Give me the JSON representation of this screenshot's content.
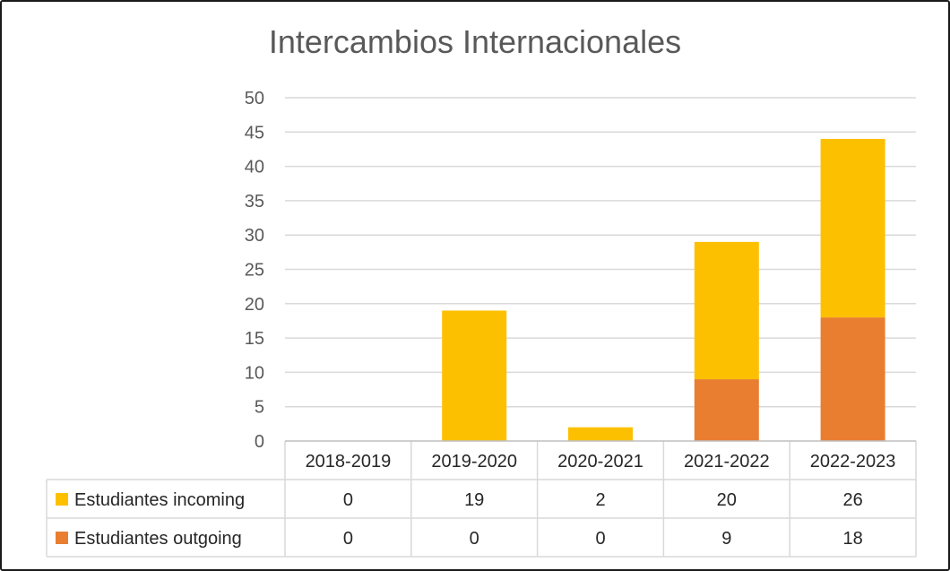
{
  "chart_data": {
    "type": "bar",
    "stacked": true,
    "title": "Intercambios Internacionales",
    "categories": [
      "2018-2019",
      "2019-2020",
      "2020-2021",
      "2021-2022",
      "2022-2023"
    ],
    "series": [
      {
        "name": "Estudiantes outgoing",
        "color": "#E97E31",
        "values": [
          0,
          0,
          0,
          9,
          18
        ]
      },
      {
        "name": "Estudiantes incoming",
        "color": "#FDC000",
        "values": [
          0,
          19,
          2,
          20,
          26
        ]
      }
    ],
    "data_table_rows": [
      {
        "name": "Estudiantes incoming",
        "color": "#FDC000",
        "values": [
          "0",
          "19",
          "2",
          "20",
          "26"
        ]
      },
      {
        "name": "Estudiantes outgoing",
        "color": "#E97E31",
        "values": [
          "0",
          "0",
          "0",
          "9",
          "18"
        ]
      }
    ],
    "ylim": [
      0,
      50
    ],
    "yticks": [
      "0",
      "5",
      "10",
      "15",
      "20",
      "25",
      "30",
      "35",
      "40",
      "45",
      "50"
    ],
    "grid": true,
    "legend": "data-table"
  }
}
